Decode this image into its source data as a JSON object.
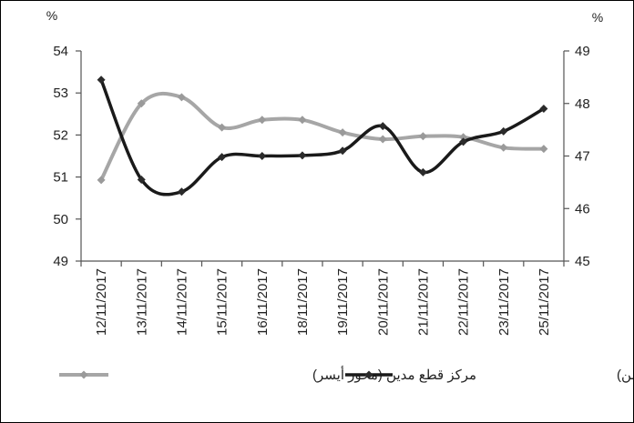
{
  "chart_data": {
    "type": "line",
    "categories": [
      "12/11/2017",
      "13/11/2017",
      "14/11/2017",
      "15/11/2017",
      "16/11/2017",
      "18/11/2017",
      "19/11/2017",
      "20/11/2017",
      "21/11/2017",
      "22/11/2017",
      "23/11/2017",
      "25/11/2017"
    ],
    "left_axis": {
      "unit": "%",
      "ylim": [
        49,
        54
      ],
      "ticks": [
        "49",
        "50",
        "51",
        "52",
        "53",
        "54"
      ]
    },
    "right_axis": {
      "unit": "%",
      "ylim": [
        45,
        49
      ],
      "ticks": [
        "45",
        "46",
        "47",
        "48",
        "49"
      ]
    },
    "series": [
      {
        "name": "مركز قطع مدين (محور أيسر)",
        "axis": "left",
        "color": "#a6a6a6",
        "values": [
          50.93,
          52.75,
          52.9,
          52.18,
          52.36,
          52.36,
          52.06,
          51.9,
          51.97,
          51.95,
          51.7,
          51.67
        ]
      },
      {
        "name": "مركز قطع دائن (محور أيمن)",
        "axis": "right",
        "color": "#1a1a1a",
        "values": [
          48.45,
          46.55,
          46.32,
          46.98,
          47.0,
          47.01,
          47.1,
          47.57,
          46.69,
          47.27,
          47.47,
          47.9
        ]
      }
    ],
    "grid": false,
    "legend_position": "bottom"
  }
}
